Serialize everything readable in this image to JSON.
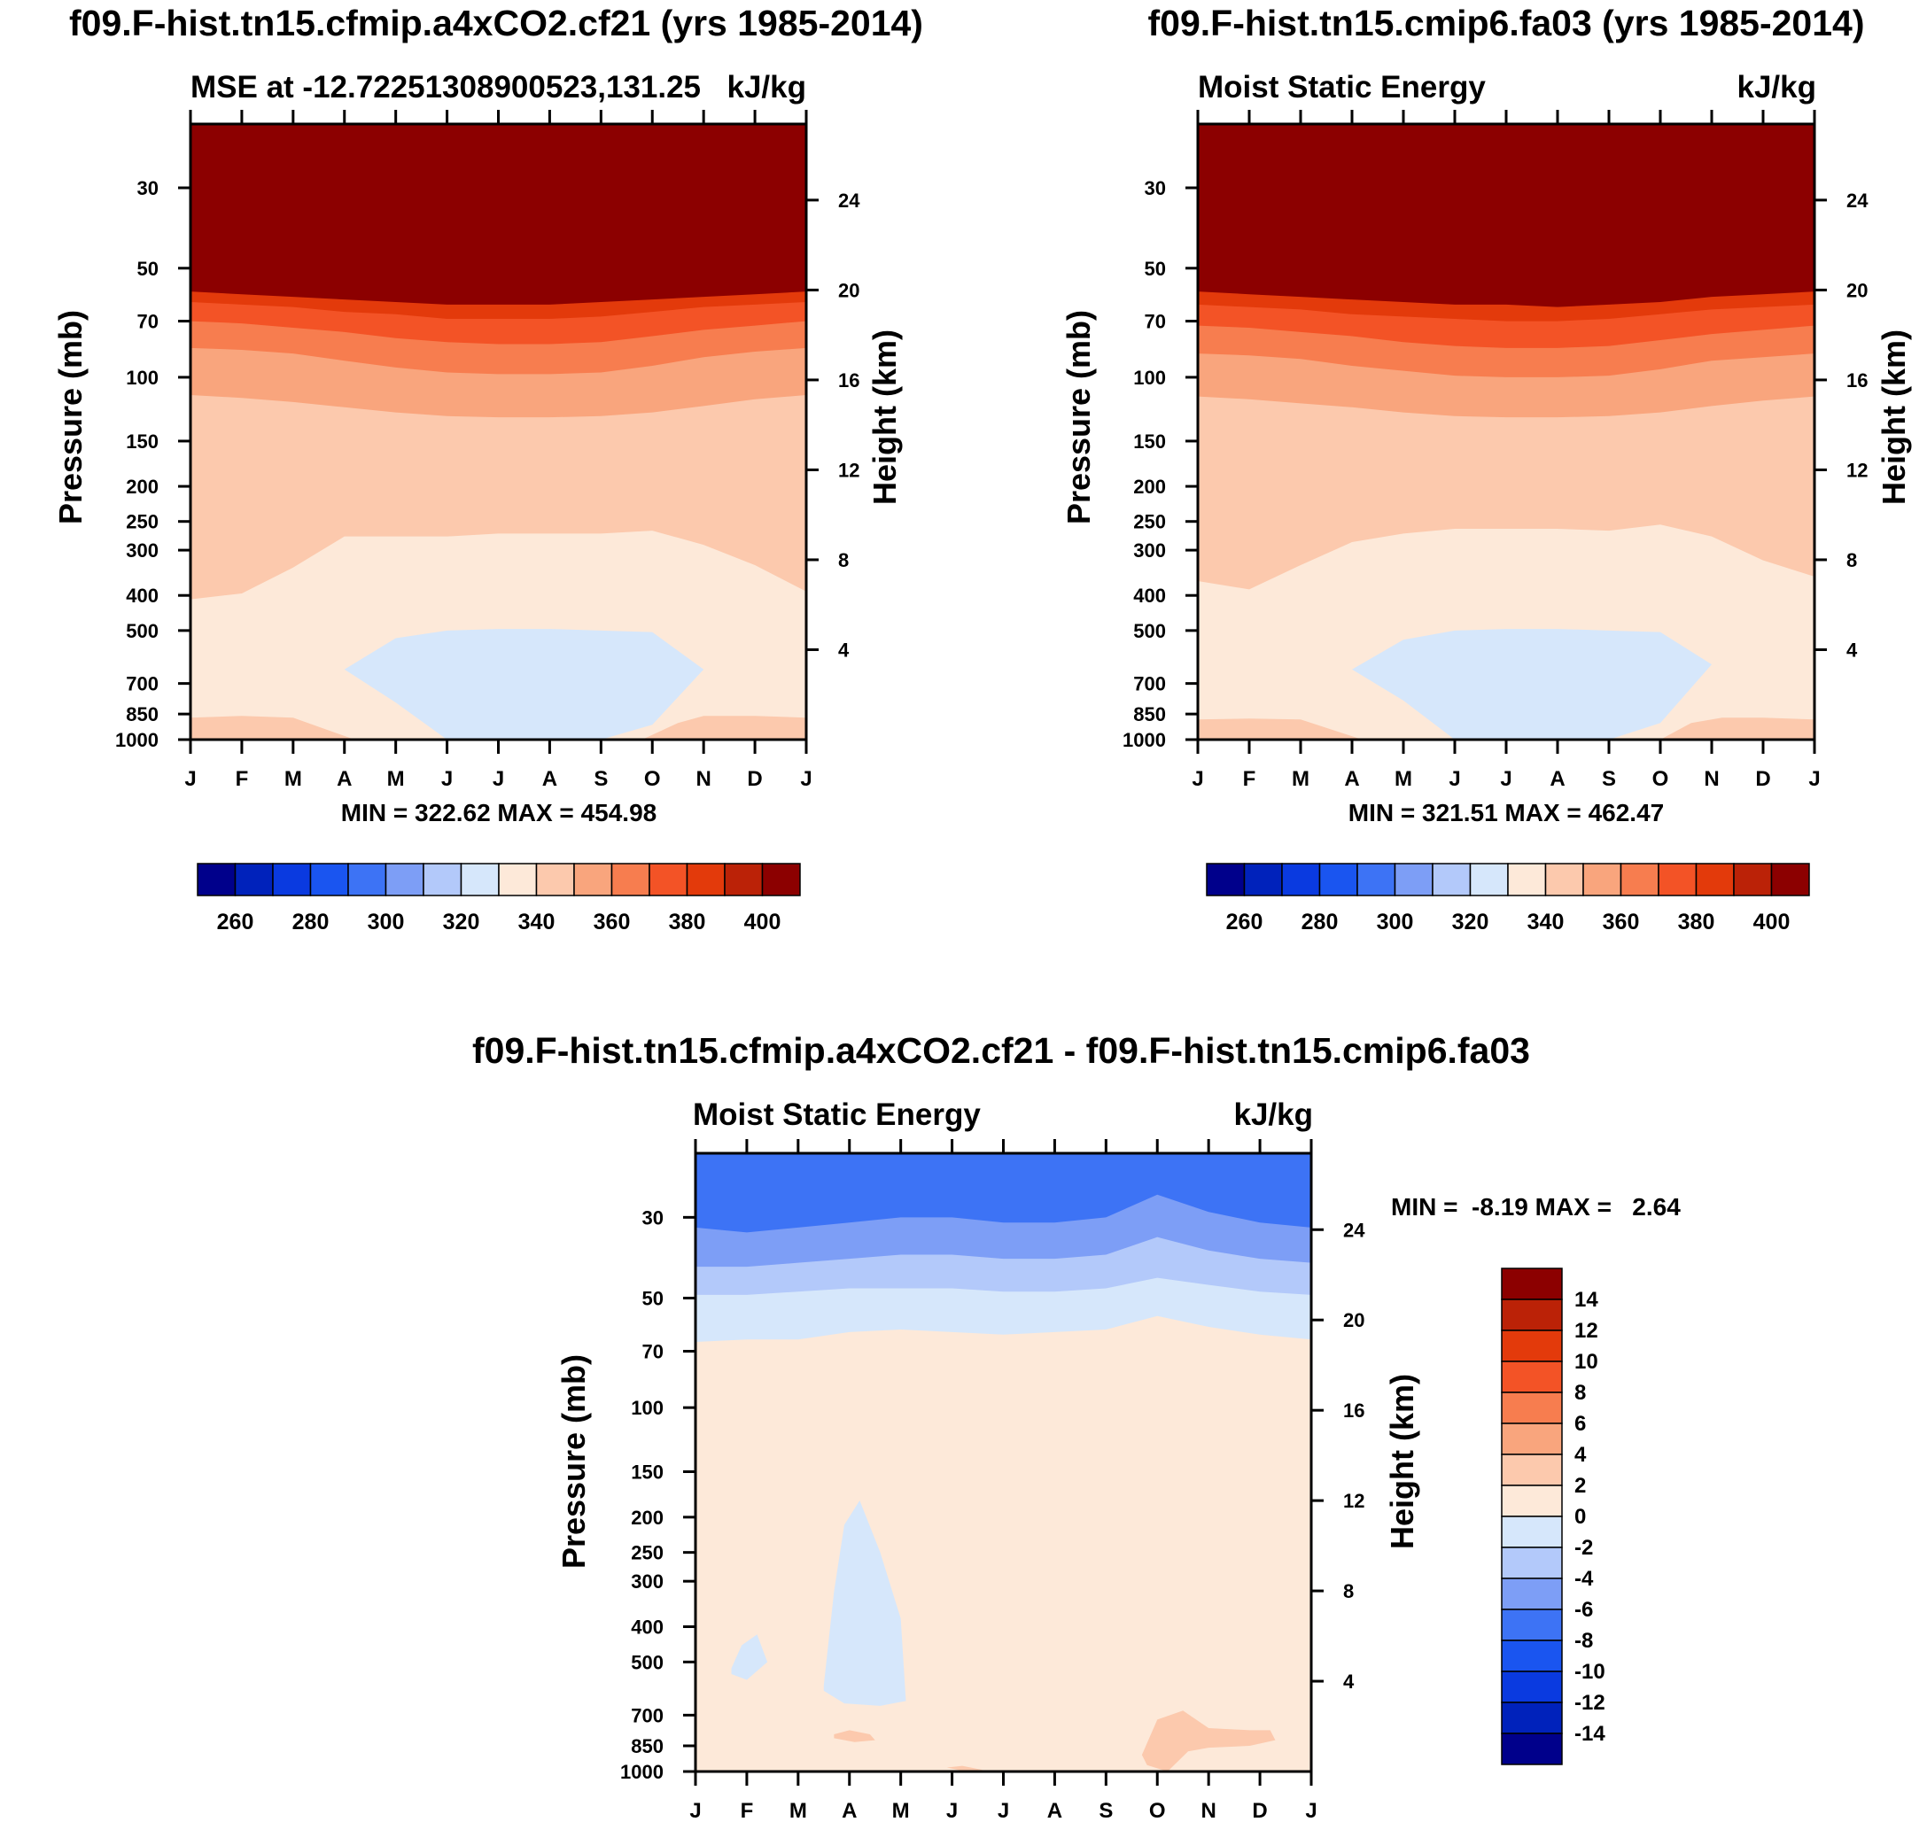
{
  "palette": {
    "levels_abs": [
      260,
      270,
      280,
      290,
      300,
      310,
      320,
      330,
      340,
      350,
      360,
      370,
      380,
      390,
      400
    ],
    "levels_diff": [
      -14,
      -12,
      -10,
      -8,
      -6,
      -4,
      -2,
      0,
      2,
      4,
      6,
      8,
      10,
      12,
      14
    ],
    "colors": [
      "#00008b",
      "#0022bb",
      "#0a3ae0",
      "#1a55f0",
      "#3d73f5",
      "#7d9ef6",
      "#b3c9fa",
      "#d6e7fb",
      "#fde9d9",
      "#fcc9ad",
      "#f9a57d",
      "#f77d4f",
      "#f35326",
      "#e33a0b",
      "#bb2207",
      "#8c0000"
    ]
  },
  "chart_data": [
    {
      "type": "heatmap",
      "figure_title": "f09.F-hist.tn15.cfmip.a4xCO2.cf21 (yrs 1985-2014)",
      "left_string": "MSE at -12.72251308900523,131.25",
      "right_string": "kJ/kg",
      "ylabel": "Pressure (mb)",
      "ylabel_right": "Height (km)",
      "x": [
        "J",
        "F",
        "M",
        "A",
        "M",
        "J",
        "J",
        "A",
        "S",
        "O",
        "N",
        "D",
        "J"
      ],
      "pressure_ticks": [
        30,
        50,
        70,
        100,
        150,
        200,
        250,
        300,
        400,
        500,
        700,
        850,
        1000
      ],
      "height_ticks": [
        24,
        20,
        16,
        12,
        8,
        4
      ],
      "ylim_mb": [
        1000,
        20
      ],
      "min_max": "MIN = 322.62 MAX = 454.98",
      "colorbar_labels": [
        "260",
        "280",
        "300",
        "320",
        "340",
        "360",
        "380",
        "400"
      ],
      "contours_mb": [
        {
          "level": 390,
          "p": [
            58,
            59,
            60,
            61,
            62,
            63,
            63,
            63,
            62,
            61,
            60,
            59,
            58
          ]
        },
        {
          "level": 380,
          "p": [
            62,
            63,
            64,
            66,
            67,
            69,
            69,
            69,
            68,
            66,
            64,
            63,
            62
          ]
        },
        {
          "level": 370,
          "p": [
            70,
            71,
            73,
            75,
            78,
            80,
            81,
            81,
            80,
            77,
            74,
            72,
            70
          ]
        },
        {
          "level": 360,
          "p": [
            83,
            84,
            86,
            90,
            94,
            97,
            98,
            98,
            97,
            93,
            88,
            85,
            83
          ]
        },
        {
          "level": 350,
          "p": [
            112,
            114,
            117,
            121,
            125,
            128,
            129,
            129,
            128,
            125,
            120,
            115,
            112
          ]
        },
        {
          "level": 340,
          "p": [
            410,
            395,
            335,
            275,
            275,
            275,
            270,
            270,
            270,
            265,
            290,
            330,
            390
          ]
        }
      ],
      "blue_region": {
        "level_range": [
          320,
          330
        ],
        "upper_mb": [
          null,
          null,
          null,
          640,
          525,
          500,
          495,
          495,
          500,
          505,
          640,
          null,
          null
        ],
        "lower_mb": [
          null,
          null,
          null,
          640,
          790,
          1000,
          1000,
          1000,
          1000,
          910,
          640,
          null,
          null
        ]
      },
      "low_bands": [
        {
          "level_range": [
            340,
            350
          ],
          "upper_mb": [
            870,
            860,
            870,
            1000
          ],
          "months": [
            0,
            1,
            2,
            3.2
          ]
        },
        {
          "level_range": [
            340,
            350
          ],
          "upper_mb": [
            1000,
            900,
            860,
            860,
            870
          ],
          "months": [
            8.8,
            9.5,
            10,
            11,
            12
          ]
        }
      ]
    },
    {
      "type": "heatmap",
      "figure_title": "f09.F-hist.tn15.cmip6.fa03 (yrs 1985-2014)",
      "left_string": "Moist Static Energy",
      "right_string": "kJ/kg",
      "ylabel": "Pressure (mb)",
      "ylabel_right": "Height (km)",
      "x": [
        "J",
        "F",
        "M",
        "A",
        "M",
        "J",
        "J",
        "A",
        "S",
        "O",
        "N",
        "D",
        "J"
      ],
      "pressure_ticks": [
        30,
        50,
        70,
        100,
        150,
        200,
        250,
        300,
        400,
        500,
        700,
        850,
        1000
      ],
      "height_ticks": [
        24,
        20,
        16,
        12,
        8,
        4
      ],
      "ylim_mb": [
        1000,
        20
      ],
      "min_max": "MIN = 321.51 MAX = 462.47",
      "colorbar_labels": [
        "260",
        "280",
        "300",
        "320",
        "340",
        "360",
        "380",
        "400"
      ],
      "contours_mb": [
        {
          "level": 390,
          "p": [
            58,
            59,
            60,
            61,
            62,
            63,
            63,
            64,
            63,
            62,
            60,
            59,
            58
          ]
        },
        {
          "level": 380,
          "p": [
            63,
            64,
            65,
            67,
            68,
            69,
            70,
            70,
            69,
            67,
            65,
            64,
            63
          ]
        },
        {
          "level": 370,
          "p": [
            72,
            73,
            75,
            77,
            80,
            82,
            83,
            83,
            82,
            79,
            76,
            74,
            72
          ]
        },
        {
          "level": 360,
          "p": [
            86,
            87,
            89,
            93,
            96,
            99,
            100,
            100,
            99,
            95,
            90,
            88,
            86
          ]
        },
        {
          "level": 350,
          "p": [
            113,
            115,
            118,
            121,
            125,
            128,
            129,
            129,
            128,
            125,
            120,
            116,
            113
          ]
        },
        {
          "level": 340,
          "p": [
            365,
            385,
            330,
            285,
            270,
            262,
            262,
            262,
            265,
            255,
            275,
            320,
            355
          ]
        }
      ],
      "blue_region": {
        "level_range": [
          320,
          330
        ],
        "upper_mb": [
          null,
          null,
          null,
          640,
          530,
          500,
          495,
          495,
          500,
          505,
          620,
          null,
          null
        ],
        "lower_mb": [
          null,
          null,
          null,
          640,
          780,
          1000,
          1000,
          1000,
          1000,
          900,
          620,
          null,
          null
        ]
      },
      "low_bands": [
        {
          "level_range": [
            340,
            350
          ],
          "upper_mb": [
            880,
            875,
            880,
            1000
          ],
          "months": [
            0,
            1,
            2,
            3.2
          ]
        },
        {
          "level_range": [
            340,
            350
          ],
          "upper_mb": [
            1000,
            900,
            870,
            870,
            880
          ],
          "months": [
            9,
            9.6,
            10.2,
            11,
            12
          ]
        }
      ]
    },
    {
      "type": "heatmap",
      "figure_title": "f09.F-hist.tn15.cfmip.a4xCO2.cf21 - f09.F-hist.tn15.cmip6.fa03",
      "left_string": "Moist Static Energy",
      "right_string": "kJ/kg",
      "ylabel": "Pressure (mb)",
      "ylabel_right": "Height (km)",
      "x": [
        "J",
        "F",
        "M",
        "A",
        "M",
        "J",
        "J",
        "A",
        "S",
        "O",
        "N",
        "D",
        "J"
      ],
      "pressure_ticks": [
        30,
        50,
        70,
        100,
        150,
        200,
        250,
        300,
        400,
        500,
        700,
        850,
        1000
      ],
      "height_ticks": [
        24,
        20,
        16,
        12,
        8,
        4
      ],
      "ylim_mb": [
        1000,
        20
      ],
      "min_max": "MIN =  -8.19 MAX =   2.64",
      "colorbar_labels": [
        "14",
        "12",
        "10",
        "8",
        "6",
        "4",
        "2",
        "0",
        "-2",
        "-4",
        "-6",
        "-8",
        "-10",
        "-12",
        "-14"
      ],
      "contours_mb": [
        {
          "level": -8,
          "p": [
            20,
            20,
            20,
            20,
            20,
            20,
            20,
            20,
            20,
            20,
            20,
            20,
            20
          ]
        },
        {
          "level": -6,
          "p": [
            32,
            33,
            32,
            31,
            30,
            30,
            31,
            31,
            30,
            26,
            29,
            31,
            32
          ]
        },
        {
          "level": -4,
          "p": [
            41,
            41,
            40,
            39,
            38,
            38,
            39,
            39,
            38,
            34,
            37,
            39,
            40
          ]
        },
        {
          "level": -2,
          "p": [
            49,
            49,
            48,
            47,
            47,
            47,
            48,
            48,
            47,
            44,
            46,
            48,
            49
          ]
        },
        {
          "level": 0,
          "p": [
            66,
            65,
            65,
            62,
            61,
            62,
            63,
            62,
            61,
            56,
            60,
            63,
            65
          ]
        }
      ],
      "blue_patches": [
        {
          "level_range": [
            -2,
            0
          ],
          "months": [
            0.7,
            0.9,
            1.2,
            1.4,
            1.0,
            0.7
          ],
          "mb": [
            520,
            450,
            420,
            500,
            560,
            540
          ]
        },
        {
          "level_range": [
            -2,
            0
          ],
          "months": [
            2.5,
            2.7,
            2.9,
            3.2,
            3.6,
            4.0,
            4.1,
            3.6,
            2.9,
            2.5
          ],
          "mb": [
            580,
            320,
            210,
            180,
            250,
            380,
            640,
            660,
            650,
            600
          ]
        }
      ],
      "positive_patches": [
        {
          "level_range": [
            0,
            2
          ],
          "months": [
            2.7,
            3.0,
            3.4,
            3.5,
            3.1,
            2.7
          ],
          "mb": [
            790,
            770,
            790,
            820,
            830,
            810
          ]
        },
        {
          "level_range": [
            0,
            2
          ],
          "months": [
            8.7,
            9.0,
            9.5,
            10.0,
            10.8,
            11.2,
            11.3,
            10.8,
            10.0,
            9.6,
            9.2,
            8.8
          ],
          "mb": [
            900,
            720,
            680,
            760,
            770,
            770,
            820,
            850,
            860,
            880,
            1000,
            960
          ]
        },
        {
          "level_range": [
            0,
            2
          ],
          "months": [
            4.9,
            5.2,
            5.6,
            5.2
          ],
          "mb": [
            975,
            965,
            990,
            995
          ]
        }
      ]
    }
  ]
}
